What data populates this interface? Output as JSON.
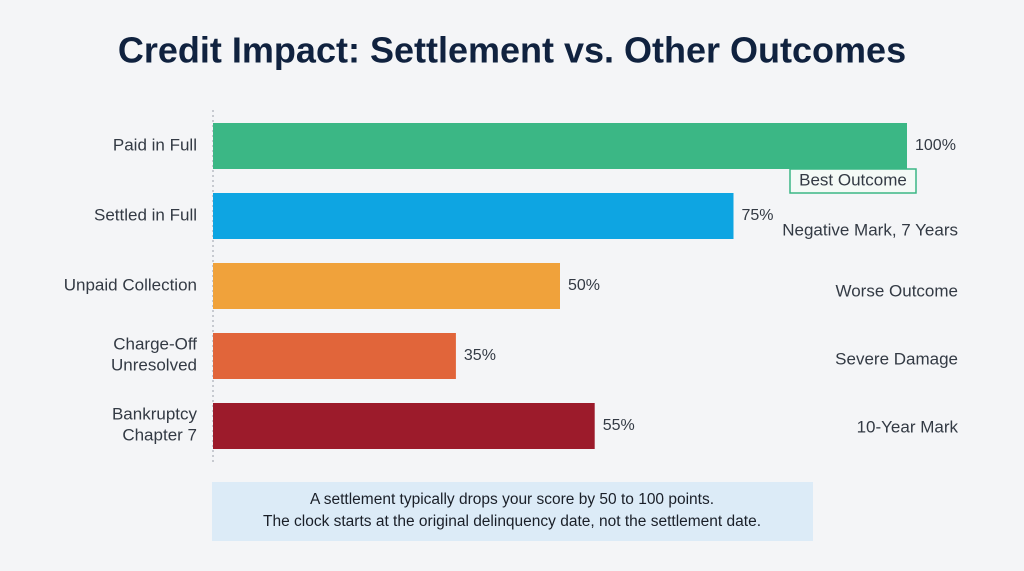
{
  "chart_data": {
    "type": "bar",
    "orientation": "horizontal",
    "title": "Credit Impact: Settlement vs. Other Outcomes",
    "categories": [
      "Paid in Full",
      "Settled in Full",
      "Unpaid Collection",
      "Charge-Off\nUnresolved",
      "Bankruptcy\nChapter 7"
    ],
    "values": [
      100,
      75,
      50,
      35,
      55
    ],
    "value_labels": [
      "100%",
      "75%",
      "50%",
      "35%",
      "55%"
    ],
    "colors": [
      "#3bb785",
      "#0ea5e2",
      "#f0a23b",
      "#e1653a",
      "#9c1b2b"
    ],
    "annotations": [
      "Best Outcome",
      "Negative Mark, 7 Years",
      "Worse Outcome",
      "Severe Damage",
      "10-Year Mark"
    ],
    "note": [
      "A settlement typically drops your score by 50 to 100 points.",
      "The clock starts at the original delinquency date, not the settlement date."
    ]
  }
}
